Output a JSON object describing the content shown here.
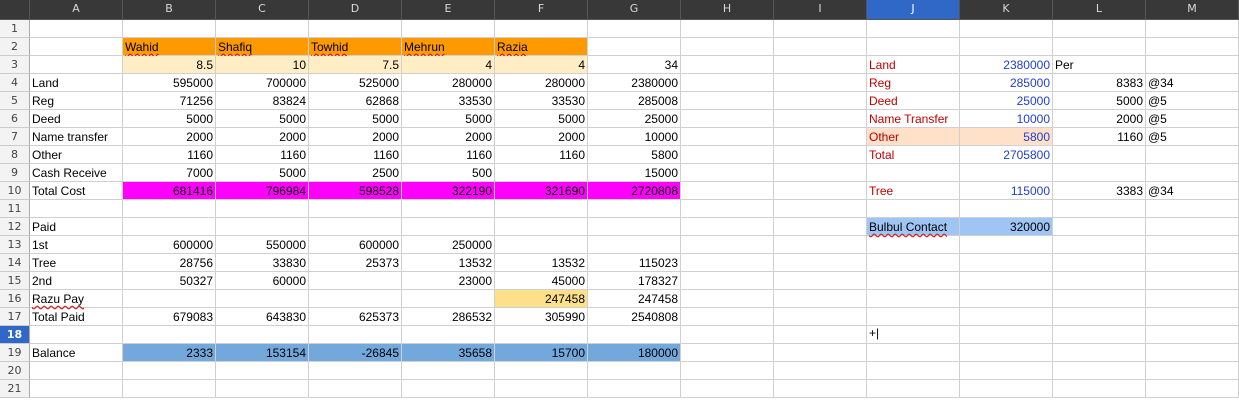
{
  "columns": [
    "A",
    "B",
    "C",
    "D",
    "E",
    "F",
    "G",
    "H",
    "I",
    "J",
    "K",
    "L",
    "M"
  ],
  "selected_column": "J",
  "selected_row": "18",
  "colors": {
    "orange": "#ff9900",
    "light_orange": "#ffedc5",
    "magenta": "#ff00ff",
    "blue_band": "#72a8dc",
    "peach": "#ffe0c8",
    "light_blue": "#9fc5f5",
    "yellow": "#ffe08a"
  },
  "rows": [
    {
      "n": "1",
      "cells": []
    },
    {
      "n": "2",
      "cells": [
        {
          "c": "B",
          "v": "Wahid",
          "t": "txt",
          "bg": "orange",
          "u": true
        },
        {
          "c": "C",
          "v": "Shafiq",
          "t": "txt",
          "bg": "orange",
          "u": true
        },
        {
          "c": "D",
          "v": "Towhid",
          "t": "txt",
          "bg": "orange",
          "u": true
        },
        {
          "c": "E",
          "v": "Mehrun",
          "t": "txt",
          "bg": "orange",
          "u": true
        },
        {
          "c": "F",
          "v": "Razia",
          "t": "txt",
          "bg": "orange",
          "u": true
        }
      ]
    },
    {
      "n": "3",
      "cells": [
        {
          "c": "B",
          "v": "8.5",
          "t": "num",
          "bg": "light_orange"
        },
        {
          "c": "C",
          "v": "10",
          "t": "num",
          "bg": "light_orange"
        },
        {
          "c": "D",
          "v": "7.5",
          "t": "num",
          "bg": "light_orange"
        },
        {
          "c": "E",
          "v": "4",
          "t": "num",
          "bg": "light_orange"
        },
        {
          "c": "F",
          "v": "4",
          "t": "num",
          "bg": "light_orange"
        },
        {
          "c": "G",
          "v": "34",
          "t": "num"
        },
        {
          "c": "J",
          "v": "Land",
          "t": "txt",
          "col": "red"
        },
        {
          "c": "K",
          "v": "2380000",
          "t": "num",
          "col": "blue"
        },
        {
          "c": "L",
          "v": "Per",
          "t": "txt"
        }
      ]
    },
    {
      "n": "4",
      "cells": [
        {
          "c": "A",
          "v": "Land",
          "t": "txt"
        },
        {
          "c": "B",
          "v": "595000",
          "t": "num"
        },
        {
          "c": "C",
          "v": "700000",
          "t": "num"
        },
        {
          "c": "D",
          "v": "525000",
          "t": "num"
        },
        {
          "c": "E",
          "v": "280000",
          "t": "num"
        },
        {
          "c": "F",
          "v": "280000",
          "t": "num"
        },
        {
          "c": "G",
          "v": "2380000",
          "t": "num"
        },
        {
          "c": "J",
          "v": "Reg",
          "t": "txt",
          "col": "red"
        },
        {
          "c": "K",
          "v": "285000",
          "t": "num",
          "col": "blue"
        },
        {
          "c": "L",
          "v": "8383",
          "t": "num"
        },
        {
          "c": "M",
          "v": "@34",
          "t": "txt"
        }
      ]
    },
    {
      "n": "5",
      "cells": [
        {
          "c": "A",
          "v": "Reg",
          "t": "txt"
        },
        {
          "c": "B",
          "v": "71256",
          "t": "num"
        },
        {
          "c": "C",
          "v": "83824",
          "t": "num"
        },
        {
          "c": "D",
          "v": "62868",
          "t": "num"
        },
        {
          "c": "E",
          "v": "33530",
          "t": "num"
        },
        {
          "c": "F",
          "v": "33530",
          "t": "num"
        },
        {
          "c": "G",
          "v": "285008",
          "t": "num"
        },
        {
          "c": "J",
          "v": "Deed",
          "t": "txt",
          "col": "red"
        },
        {
          "c": "K",
          "v": "25000",
          "t": "num",
          "col": "blue"
        },
        {
          "c": "L",
          "v": "5000",
          "t": "num"
        },
        {
          "c": "M",
          "v": "@5",
          "t": "txt"
        }
      ]
    },
    {
      "n": "6",
      "cells": [
        {
          "c": "A",
          "v": "Deed",
          "t": "txt"
        },
        {
          "c": "B",
          "v": "5000",
          "t": "num"
        },
        {
          "c": "C",
          "v": "5000",
          "t": "num"
        },
        {
          "c": "D",
          "v": "5000",
          "t": "num"
        },
        {
          "c": "E",
          "v": "5000",
          "t": "num"
        },
        {
          "c": "F",
          "v": "5000",
          "t": "num"
        },
        {
          "c": "G",
          "v": "25000",
          "t": "num"
        },
        {
          "c": "J",
          "v": "Name Transfer",
          "t": "txt",
          "col": "red"
        },
        {
          "c": "K",
          "v": "10000",
          "t": "num",
          "col": "blue"
        },
        {
          "c": "L",
          "v": "2000",
          "t": "num"
        },
        {
          "c": "M",
          "v": "@5",
          "t": "txt"
        }
      ]
    },
    {
      "n": "7",
      "cells": [
        {
          "c": "A",
          "v": "Name transfer",
          "t": "txt"
        },
        {
          "c": "B",
          "v": "2000",
          "t": "num"
        },
        {
          "c": "C",
          "v": "2000",
          "t": "num"
        },
        {
          "c": "D",
          "v": "2000",
          "t": "num"
        },
        {
          "c": "E",
          "v": "2000",
          "t": "num"
        },
        {
          "c": "F",
          "v": "2000",
          "t": "num"
        },
        {
          "c": "G",
          "v": "10000",
          "t": "num"
        },
        {
          "c": "J",
          "v": "Other",
          "t": "txt",
          "col": "red",
          "bg": "peach"
        },
        {
          "c": "K",
          "v": "5800",
          "t": "num",
          "col": "blue",
          "bg": "peach"
        },
        {
          "c": "L",
          "v": "1160",
          "t": "num"
        },
        {
          "c": "M",
          "v": "@5",
          "t": "txt"
        }
      ]
    },
    {
      "n": "8",
      "cells": [
        {
          "c": "A",
          "v": "Other",
          "t": "txt"
        },
        {
          "c": "B",
          "v": "1160",
          "t": "num"
        },
        {
          "c": "C",
          "v": "1160",
          "t": "num"
        },
        {
          "c": "D",
          "v": "1160",
          "t": "num"
        },
        {
          "c": "E",
          "v": "1160",
          "t": "num"
        },
        {
          "c": "F",
          "v": "1160",
          "t": "num"
        },
        {
          "c": "G",
          "v": "5800",
          "t": "num"
        },
        {
          "c": "J",
          "v": "Total",
          "t": "txt",
          "col": "red"
        },
        {
          "c": "K",
          "v": "2705800",
          "t": "num",
          "col": "blue"
        }
      ]
    },
    {
      "n": "9",
      "cells": [
        {
          "c": "A",
          "v": "Cash Receive",
          "t": "txt"
        },
        {
          "c": "B",
          "v": "7000",
          "t": "num"
        },
        {
          "c": "C",
          "v": "5000",
          "t": "num"
        },
        {
          "c": "D",
          "v": "2500",
          "t": "num"
        },
        {
          "c": "E",
          "v": "500",
          "t": "num"
        },
        {
          "c": "G",
          "v": "15000",
          "t": "num"
        }
      ]
    },
    {
      "n": "10",
      "cells": [
        {
          "c": "A",
          "v": "Total Cost",
          "t": "txt"
        },
        {
          "c": "B",
          "v": "681416",
          "t": "num",
          "bg": "magenta"
        },
        {
          "c": "C",
          "v": "796984",
          "t": "num",
          "bg": "magenta"
        },
        {
          "c": "D",
          "v": "598528",
          "t": "num",
          "bg": "magenta"
        },
        {
          "c": "E",
          "v": "322190",
          "t": "num",
          "bg": "magenta"
        },
        {
          "c": "F",
          "v": "321690",
          "t": "num",
          "bg": "magenta"
        },
        {
          "c": "G",
          "v": "2720808",
          "t": "num",
          "bg": "magenta"
        },
        {
          "c": "J",
          "v": "Tree",
          "t": "txt",
          "col": "red"
        },
        {
          "c": "K",
          "v": "115000",
          "t": "num",
          "col": "blue"
        },
        {
          "c": "L",
          "v": "3383",
          "t": "num"
        },
        {
          "c": "M",
          "v": "@34",
          "t": "txt"
        }
      ]
    },
    {
      "n": "11",
      "cells": []
    },
    {
      "n": "12",
      "cells": [
        {
          "c": "A",
          "v": "Paid",
          "t": "txt"
        },
        {
          "c": "J",
          "v": "Bulbul Contact",
          "t": "txt",
          "bg": "light_blue",
          "u": true
        },
        {
          "c": "K",
          "v": "320000",
          "t": "num",
          "bg": "light_blue"
        }
      ]
    },
    {
      "n": "13",
      "cells": [
        {
          "c": "A",
          "v": "1st",
          "t": "txt"
        },
        {
          "c": "B",
          "v": "600000",
          "t": "num"
        },
        {
          "c": "C",
          "v": "550000",
          "t": "num"
        },
        {
          "c": "D",
          "v": "600000",
          "t": "num"
        },
        {
          "c": "E",
          "v": "250000",
          "t": "num"
        }
      ]
    },
    {
      "n": "14",
      "cells": [
        {
          "c": "A",
          "v": "Tree",
          "t": "txt"
        },
        {
          "c": "B",
          "v": "28756",
          "t": "num"
        },
        {
          "c": "C",
          "v": "33830",
          "t": "num"
        },
        {
          "c": "D",
          "v": "25373",
          "t": "num"
        },
        {
          "c": "E",
          "v": "13532",
          "t": "num"
        },
        {
          "c": "F",
          "v": "13532",
          "t": "num"
        },
        {
          "c": "G",
          "v": "115023",
          "t": "num"
        }
      ]
    },
    {
      "n": "15",
      "cells": [
        {
          "c": "A",
          "v": "2nd",
          "t": "txt"
        },
        {
          "c": "B",
          "v": "50327",
          "t": "num"
        },
        {
          "c": "C",
          "v": "60000",
          "t": "num"
        },
        {
          "c": "E",
          "v": "23000",
          "t": "num"
        },
        {
          "c": "F",
          "v": "45000",
          "t": "num"
        },
        {
          "c": "G",
          "v": "178327",
          "t": "num"
        }
      ]
    },
    {
      "n": "16",
      "cells": [
        {
          "c": "A",
          "v": "Razu Pay",
          "t": "txt",
          "u": true
        },
        {
          "c": "F",
          "v": "247458",
          "t": "num",
          "bg": "yellow"
        },
        {
          "c": "G",
          "v": "247458",
          "t": "num"
        }
      ]
    },
    {
      "n": "17",
      "cells": [
        {
          "c": "A",
          "v": "Total Paid",
          "t": "txt"
        },
        {
          "c": "B",
          "v": "679083",
          "t": "num"
        },
        {
          "c": "C",
          "v": "643830",
          "t": "num"
        },
        {
          "c": "D",
          "v": "625373",
          "t": "num"
        },
        {
          "c": "E",
          "v": "286532",
          "t": "num"
        },
        {
          "c": "F",
          "v": "305990",
          "t": "num"
        },
        {
          "c": "G",
          "v": "2540808",
          "t": "num"
        }
      ]
    },
    {
      "n": "18",
      "cells": []
    },
    {
      "n": "19",
      "cells": [
        {
          "c": "A",
          "v": "Balance",
          "t": "txt"
        },
        {
          "c": "B",
          "v": "2333",
          "t": "num",
          "bg": "blue_band"
        },
        {
          "c": "C",
          "v": "153154",
          "t": "num",
          "bg": "blue_band"
        },
        {
          "c": "D",
          "v": "-26845",
          "t": "num",
          "bg": "blue_band"
        },
        {
          "c": "E",
          "v": "35658",
          "t": "num",
          "bg": "blue_band"
        },
        {
          "c": "F",
          "v": "15700",
          "t": "num",
          "bg": "blue_band"
        },
        {
          "c": "G",
          "v": "180000",
          "t": "num",
          "bg": "blue_band"
        }
      ]
    },
    {
      "n": "20",
      "cells": []
    },
    {
      "n": "21",
      "cells": []
    }
  ]
}
